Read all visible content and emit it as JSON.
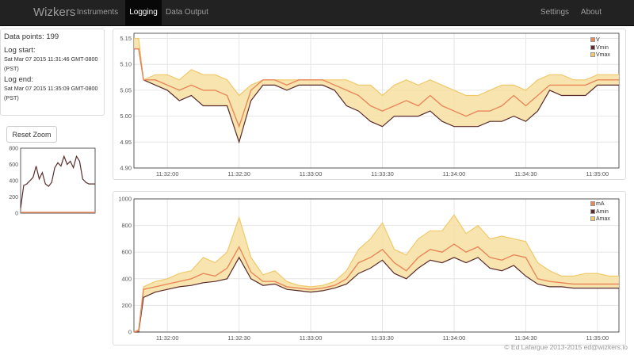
{
  "navbar": {
    "brand": "Wizkers",
    "items": [
      {
        "label": "Instruments",
        "active": false
      },
      {
        "label": "Logging",
        "active": true
      },
      {
        "label": "Data Output",
        "active": false
      }
    ],
    "right_items": [
      {
        "label": "Settings"
      },
      {
        "label": "About"
      }
    ]
  },
  "info": {
    "data_points": "Data points: 199",
    "log_start_label": "Log start:",
    "log_start_value": "Sat Mar 07 2015 11:31:46 GMT-0800",
    "log_start_tz": "(PST)",
    "log_end_label": "Log end:",
    "log_end_value": "Sat Mar 07 2015 11:35:09 GMT-0800",
    "log_end_tz": "(PST)"
  },
  "reset_zoom_label": "Reset Zoom",
  "footer": "© Ed Lafargue 2013-2015 ed@wizkers.io",
  "colors": {
    "navbar_bg": "#222222",
    "series_avg": "#e8875a",
    "series_min": "#5a2b2b",
    "series_max": "#f0c96a",
    "band_fill": "#f7dfa0"
  },
  "chart_data": [
    {
      "id": "voltage",
      "type": "area",
      "series": [
        {
          "name": "V"
        },
        {
          "name": "Vmin"
        },
        {
          "name": "Vmax"
        }
      ],
      "x_start": "11:31:46",
      "x_end": "11:35:09",
      "x_ticks": [
        "11:32:00",
        "11:32:30",
        "11:33:00",
        "11:33:30",
        "11:34:00",
        "11:34:30",
        "11:35:00"
      ],
      "y_ticks": [
        "4.90",
        "4.95",
        "5.00",
        "5.05",
        "5.10",
        "5.15"
      ],
      "ylim": [
        4.9,
        5.16
      ],
      "grid": true,
      "legend": "top-right",
      "points": [
        [
          "11:31:46",
          5.13,
          5.13,
          5.15
        ],
        [
          "11:31:48",
          5.13,
          5.13,
          5.15
        ],
        [
          "11:31:50",
          5.07,
          5.07,
          5.07
        ],
        [
          "11:31:55",
          5.07,
          5.06,
          5.08
        ],
        [
          "11:32:00",
          5.06,
          5.05,
          5.08
        ],
        [
          "11:32:05",
          5.05,
          5.03,
          5.07
        ],
        [
          "11:32:10",
          5.06,
          5.04,
          5.09
        ],
        [
          "11:32:15",
          5.05,
          5.02,
          5.08
        ],
        [
          "11:32:20",
          5.05,
          5.02,
          5.08
        ],
        [
          "11:32:25",
          5.04,
          5.02,
          5.07
        ],
        [
          "11:32:30",
          4.98,
          4.95,
          5.04
        ],
        [
          "11:32:35",
          5.05,
          5.03,
          5.06
        ],
        [
          "11:32:40",
          5.07,
          5.06,
          5.07
        ],
        [
          "11:32:45",
          5.07,
          5.06,
          5.07
        ],
        [
          "11:32:50",
          5.06,
          5.05,
          5.07
        ],
        [
          "11:32:55",
          5.07,
          5.06,
          5.07
        ],
        [
          "11:33:00",
          5.07,
          5.06,
          5.07
        ],
        [
          "11:33:05",
          5.07,
          5.06,
          5.07
        ],
        [
          "11:33:10",
          5.06,
          5.05,
          5.07
        ],
        [
          "11:33:15",
          5.05,
          5.02,
          5.07
        ],
        [
          "11:33:20",
          5.04,
          5.01,
          5.06
        ],
        [
          "11:33:25",
          5.02,
          4.99,
          5.06
        ],
        [
          "11:33:30",
          5.01,
          4.98,
          5.04
        ],
        [
          "11:33:35",
          5.02,
          5.0,
          5.06
        ],
        [
          "11:33:40",
          5.03,
          5.0,
          5.07
        ],
        [
          "11:33:45",
          5.02,
          5.0,
          5.06
        ],
        [
          "11:33:50",
          5.04,
          5.01,
          5.07
        ],
        [
          "11:33:55",
          5.02,
          4.99,
          5.06
        ],
        [
          "11:34:00",
          5.01,
          4.98,
          5.05
        ],
        [
          "11:34:05",
          5.0,
          4.98,
          5.04
        ],
        [
          "11:34:10",
          5.01,
          4.98,
          5.04
        ],
        [
          "11:34:15",
          5.01,
          4.99,
          5.05
        ],
        [
          "11:34:20",
          5.02,
          4.99,
          5.06
        ],
        [
          "11:34:25",
          5.04,
          5.0,
          5.06
        ],
        [
          "11:34:30",
          5.02,
          4.99,
          5.05
        ],
        [
          "11:34:35",
          5.04,
          5.01,
          5.07
        ],
        [
          "11:34:40",
          5.06,
          5.05,
          5.08
        ],
        [
          "11:34:45",
          5.06,
          5.04,
          5.08
        ],
        [
          "11:34:50",
          5.06,
          5.04,
          5.07
        ],
        [
          "11:34:55",
          5.06,
          5.04,
          5.07
        ],
        [
          "11:35:00",
          5.07,
          5.06,
          5.08
        ],
        [
          "11:35:05",
          5.07,
          5.06,
          5.08
        ],
        [
          "11:35:09",
          5.07,
          5.06,
          5.08
        ]
      ]
    },
    {
      "id": "current",
      "type": "area",
      "series": [
        {
          "name": "mA"
        },
        {
          "name": "Amin"
        },
        {
          "name": "Amax"
        }
      ],
      "x_start": "11:31:46",
      "x_end": "11:35:09",
      "x_ticks": [
        "11:32:00",
        "11:32:30",
        "11:33:00",
        "11:33:30",
        "11:34:00",
        "11:34:30",
        "11:35:00"
      ],
      "y_ticks": [
        "0",
        "200",
        "400",
        "600",
        "800",
        "1000"
      ],
      "ylim": [
        0,
        1000
      ],
      "grid": true,
      "legend": "top-right",
      "points": [
        [
          "11:31:46",
          0,
          0,
          0
        ],
        [
          "11:31:48",
          10,
          0,
          20
        ],
        [
          "11:31:50",
          320,
          260,
          340
        ],
        [
          "11:31:55",
          340,
          300,
          380
        ],
        [
          "11:32:00",
          360,
          320,
          400
        ],
        [
          "11:32:05",
          380,
          340,
          440
        ],
        [
          "11:32:10",
          400,
          350,
          460
        ],
        [
          "11:32:15",
          440,
          370,
          560
        ],
        [
          "11:32:20",
          420,
          380,
          520
        ],
        [
          "11:32:25",
          480,
          400,
          600
        ],
        [
          "11:32:30",
          640,
          560,
          860
        ],
        [
          "11:32:35",
          450,
          400,
          560
        ],
        [
          "11:32:40",
          380,
          350,
          430
        ],
        [
          "11:32:45",
          380,
          360,
          460
        ],
        [
          "11:32:50",
          340,
          320,
          380
        ],
        [
          "11:32:55",
          330,
          310,
          350
        ],
        [
          "11:33:00",
          320,
          300,
          340
        ],
        [
          "11:33:05",
          330,
          310,
          350
        ],
        [
          "11:33:10",
          350,
          330,
          380
        ],
        [
          "11:33:15",
          400,
          360,
          460
        ],
        [
          "11:33:20",
          520,
          440,
          620
        ],
        [
          "11:33:25",
          560,
          480,
          700
        ],
        [
          "11:33:30",
          620,
          540,
          820
        ],
        [
          "11:33:35",
          520,
          440,
          620
        ],
        [
          "11:33:40",
          460,
          400,
          580
        ],
        [
          "11:33:45",
          560,
          480,
          700
        ],
        [
          "11:33:50",
          620,
          540,
          760
        ],
        [
          "11:33:55",
          600,
          520,
          760
        ],
        [
          "11:34:00",
          660,
          560,
          880
        ],
        [
          "11:34:05",
          600,
          520,
          740
        ],
        [
          "11:34:10",
          640,
          560,
          800
        ],
        [
          "11:34:15",
          560,
          480,
          700
        ],
        [
          "11:34:20",
          540,
          460,
          720
        ],
        [
          "11:34:25",
          580,
          500,
          700
        ],
        [
          "11:34:30",
          560,
          420,
          680
        ],
        [
          "11:34:35",
          400,
          360,
          520
        ],
        [
          "11:34:40",
          380,
          340,
          460
        ],
        [
          "11:34:45",
          370,
          340,
          420
        ],
        [
          "11:34:50",
          360,
          330,
          420
        ],
        [
          "11:34:55",
          360,
          330,
          440
        ],
        [
          "11:35:00",
          360,
          330,
          440
        ],
        [
          "11:35:05",
          360,
          330,
          420
        ],
        [
          "11:35:09",
          360,
          330,
          420
        ]
      ]
    },
    {
      "id": "overview",
      "type": "line",
      "y_ticks": [
        "0",
        "200",
        "400",
        "600",
        "800"
      ],
      "ylim": [
        0,
        800
      ],
      "values": [
        60,
        340,
        360,
        400,
        440,
        580,
        420,
        500,
        360,
        330,
        380,
        560,
        620,
        580,
        700,
        600,
        640,
        560,
        700,
        640,
        420,
        380,
        360,
        360,
        360
      ]
    }
  ]
}
